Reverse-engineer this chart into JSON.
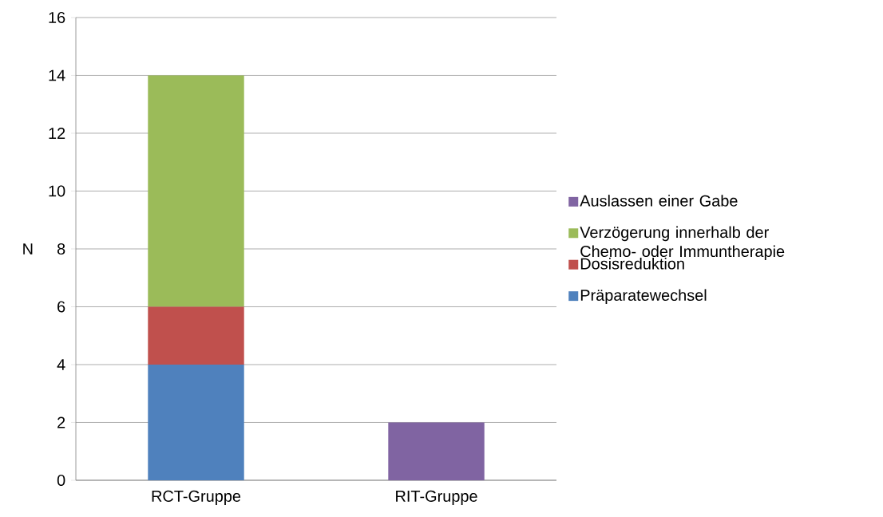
{
  "chart_data": {
    "type": "bar",
    "stacked": true,
    "ylabel": "N",
    "categories": [
      "RCT-Gruppe",
      "RIT-Gruppe"
    ],
    "series": [
      {
        "name": "Präparatewechsel",
        "color": "#4f81bd",
        "values": [
          4,
          0
        ]
      },
      {
        "name": "Dosisreduktion",
        "color": "#c0504d",
        "values": [
          2,
          0
        ]
      },
      {
        "name": "Verzögerung innerhalb der Chemo- oder Immuntherapie",
        "color": "#9bbb59",
        "values": [
          8,
          0
        ]
      },
      {
        "name": "Auslassen einer Gabe",
        "color": "#8064a2",
        "values": [
          0,
          2
        ]
      }
    ],
    "ylim": [
      0,
      16
    ],
    "yticks": [
      0,
      2,
      4,
      6,
      8,
      10,
      12,
      14,
      16
    ],
    "grid": "y",
    "legend": "right"
  }
}
